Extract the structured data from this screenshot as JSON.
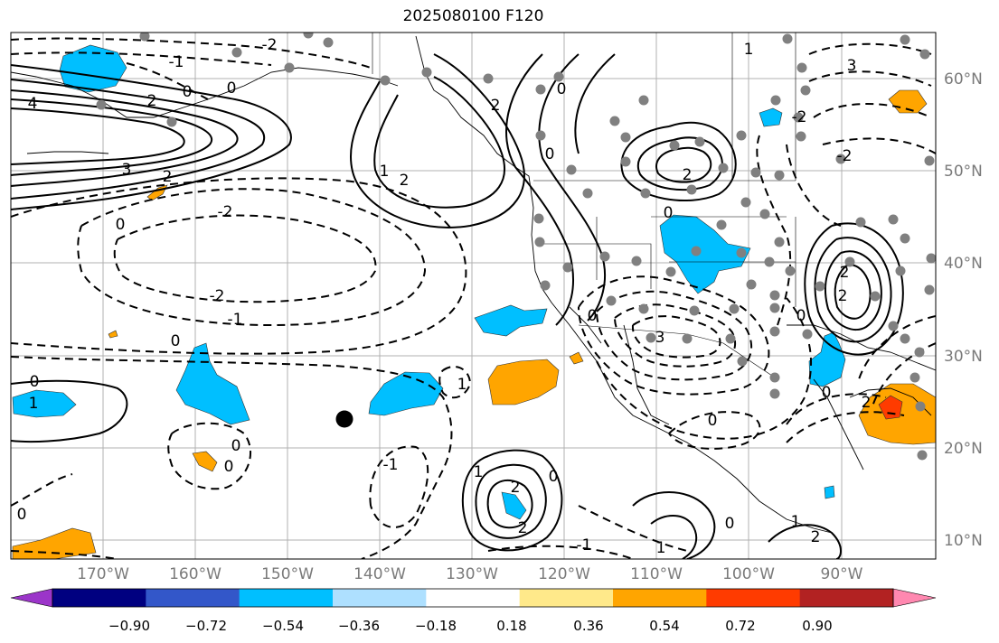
{
  "title": "2025080100 F120",
  "map": {
    "longitude_labels": [
      "170°W",
      "160°W",
      "150°W",
      "140°W",
      "130°W",
      "120°W",
      "110°W",
      "100°W",
      "90°W"
    ],
    "latitude_labels": [
      "60°N",
      "50°N",
      "40°N",
      "30°N",
      "20°N",
      "10°N"
    ],
    "contour_labels": [
      "-2",
      "-1",
      "0",
      "1",
      "2",
      "3",
      "4"
    ],
    "colorbar": {
      "tick_labels": [
        "−0.90",
        "−0.72",
        "−0.54",
        "−0.36",
        "−0.18",
        "0.18",
        "0.36",
        "0.54",
        "0.72",
        "0.90"
      ],
      "colors": [
        "#9b35c9",
        "#000080",
        "#3357c9",
        "#00bfff",
        "#aee0ff",
        "#ffffff",
        "#ffe98a",
        "#ffa500",
        "#ff3b00",
        "#b22222",
        "#ff88b0"
      ]
    },
    "colors": {
      "negative_fill": "#00bfff",
      "positive_fill": "#ffa500",
      "strong_positive_fill": "#ff3b00",
      "station_marker": "#808080",
      "contour_line": "#000000",
      "grid_line": "#b0b0b0",
      "axis_label": "#7a7a7a"
    }
  }
}
